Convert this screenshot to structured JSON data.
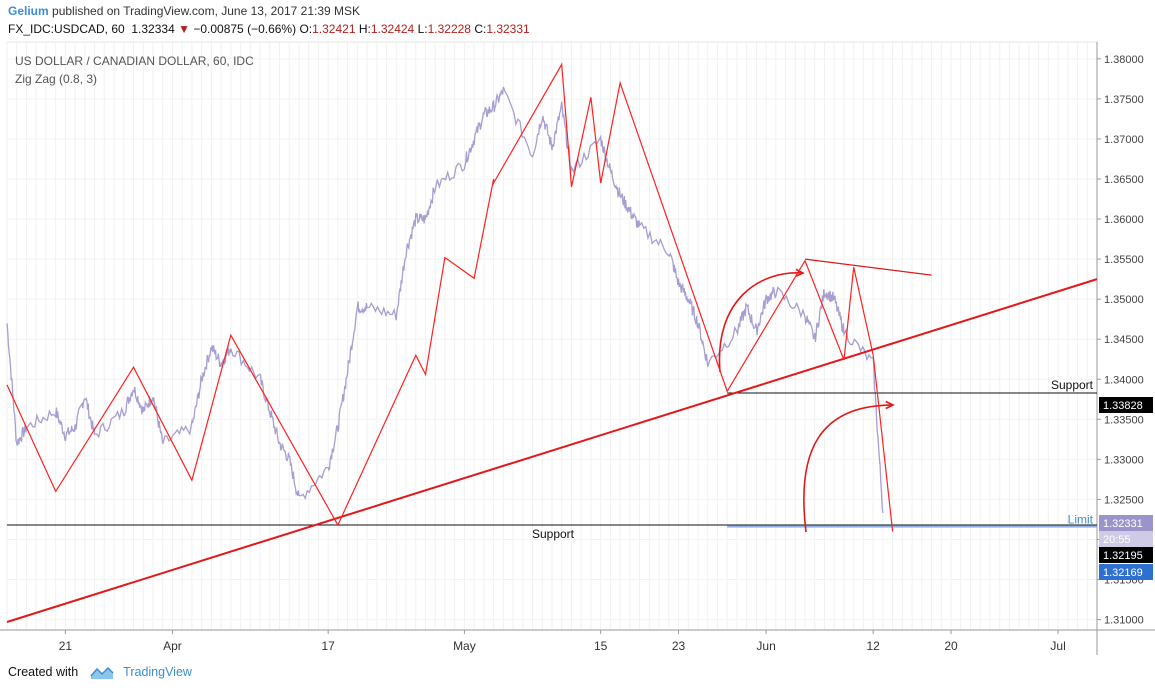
{
  "header": {
    "author": "Gelium",
    "published_text": "published on TradingView.com, June 13, 2017 21:39 MSK",
    "symbol": "FX_IDC:USDCAD, 60",
    "last": "1.32334",
    "change_arrow": "▼",
    "change": "−0.00875 (−0.66%)",
    "o_label": "O:",
    "o_value": "1.32421",
    "h_label": "H:",
    "h_value": "1.32424",
    "l_label": "L:",
    "l_value": "1.32228",
    "c_label": "C:",
    "c_value": "1.32331"
  },
  "footer": {
    "created_with": "Created with",
    "brand": "TradingView",
    "logo_icon": "tradingview-logo-icon"
  },
  "colors": {
    "price": "#9d94cc",
    "zigzag": "#ff2020",
    "trend": "#e0191a",
    "support": "#111111",
    "limit": "#8fb3e6",
    "accent": "#3d8fd1"
  },
  "chart_data": {
    "type": "line",
    "title": "US DOLLAR / CANADIAN DOLLAR, 60, IDC",
    "indicator": "Zig Zag (0.8, 3)",
    "y_ticks": [
      "1.38000",
      "1.37500",
      "1.37000",
      "1.36500",
      "1.36000",
      "1.35500",
      "1.35000",
      "1.34500",
      "1.34000",
      "1.33500",
      "1.33000",
      "1.32500",
      "1.32000",
      "1.31500",
      "1.31000"
    ],
    "ylim": [
      1.3087,
      1.3821
    ],
    "x_ticks": [
      "21",
      "Apr",
      "17",
      "May",
      "15",
      "23",
      "Jun",
      "12",
      "20",
      "Jul"
    ],
    "price_series": [
      {
        "x": "Mar 15",
        "y": 1.347
      },
      {
        "x": "Mar 16",
        "y": 1.332
      },
      {
        "x": "Mar 17",
        "y": 1.334
      },
      {
        "x": "Mar 20",
        "y": 1.336
      },
      {
        "x": "Mar 21",
        "y": 1.333
      },
      {
        "x": "Mar 22",
        "y": 1.334
      },
      {
        "x": "Mar 23",
        "y": 1.338
      },
      {
        "x": "Mar 24",
        "y": 1.333
      },
      {
        "x": "Mar 27",
        "y": 1.336
      },
      {
        "x": "Mar 28",
        "y": 1.339
      },
      {
        "x": "Mar 29",
        "y": 1.336
      },
      {
        "x": "Mar 30",
        "y": 1.338
      },
      {
        "x": "Mar 31",
        "y": 1.332
      },
      {
        "x": "Apr 3",
        "y": 1.334
      },
      {
        "x": "Apr 4",
        "y": 1.34
      },
      {
        "x": "Apr 5",
        "y": 1.344
      },
      {
        "x": "Apr 6",
        "y": 1.342
      },
      {
        "x": "Apr 7",
        "y": 1.344
      },
      {
        "x": "Apr 10",
        "y": 1.34
      },
      {
        "x": "Apr 11",
        "y": 1.336
      },
      {
        "x": "Apr 12",
        "y": 1.332
      },
      {
        "x": "Apr 13",
        "y": 1.33
      },
      {
        "x": "Apr 14",
        "y": 1.325
      },
      {
        "x": "Apr 17",
        "y": 1.329
      },
      {
        "x": "Apr 18",
        "y": 1.334
      },
      {
        "x": "Apr 19",
        "y": 1.341
      },
      {
        "x": "Apr 20",
        "y": 1.349
      },
      {
        "x": "Apr 21",
        "y": 1.349
      },
      {
        "x": "Apr 24",
        "y": 1.348
      },
      {
        "x": "Apr 25",
        "y": 1.356
      },
      {
        "x": "Apr 26",
        "y": 1.36
      },
      {
        "x": "Apr 27",
        "y": 1.36
      },
      {
        "x": "Apr 28",
        "y": 1.364
      },
      {
        "x": "May 1",
        "y": 1.367
      },
      {
        "x": "May 2",
        "y": 1.37
      },
      {
        "x": "May 3",
        "y": 1.373
      },
      {
        "x": "May 4",
        "y": 1.374
      },
      {
        "x": "May 5",
        "y": 1.376
      },
      {
        "x": "May 8",
        "y": 1.368
      },
      {
        "x": "May 9",
        "y": 1.373
      },
      {
        "x": "May 10",
        "y": 1.369
      },
      {
        "x": "May 11",
        "y": 1.374
      },
      {
        "x": "May 12",
        "y": 1.366
      },
      {
        "x": "May 15",
        "y": 1.37
      },
      {
        "x": "May 16",
        "y": 1.366
      },
      {
        "x": "May 17",
        "y": 1.363
      },
      {
        "x": "May 18",
        "y": 1.361
      },
      {
        "x": "May 19",
        "y": 1.359
      },
      {
        "x": "May 22",
        "y": 1.356
      },
      {
        "x": "May 23",
        "y": 1.352
      },
      {
        "x": "May 24",
        "y": 1.35
      },
      {
        "x": "May 25",
        "y": 1.347
      },
      {
        "x": "May 26",
        "y": 1.342
      },
      {
        "x": "May 29",
        "y": 1.346
      },
      {
        "x": "May 30",
        "y": 1.349
      },
      {
        "x": "May 31",
        "y": 1.346
      },
      {
        "x": "Jun 1",
        "y": 1.35
      },
      {
        "x": "Jun 2",
        "y": 1.351
      },
      {
        "x": "Jun 5",
        "y": 1.348
      },
      {
        "x": "Jun 6",
        "y": 1.345
      },
      {
        "x": "Jun 7",
        "y": 1.351
      },
      {
        "x": "Jun 8",
        "y": 1.35
      },
      {
        "x": "Jun 9",
        "y": 1.346
      },
      {
        "x": "Jun 12",
        "y": 1.342
      },
      {
        "x": "Jun 13",
        "y": 1.3233
      }
    ],
    "zigzag": [
      {
        "x": "Mar 15",
        "y": 1.3393
      },
      {
        "x": "Mar 20",
        "y": 1.326
      },
      {
        "x": "Mar 28",
        "y": 1.3415
      },
      {
        "x": "Apr 3",
        "y": 1.3274
      },
      {
        "x": "Apr 7",
        "y": 1.3455
      },
      {
        "x": "Apr 18",
        "y": 1.3218
      },
      {
        "x": "Apr 26",
        "y": 1.343
      },
      {
        "x": "Apr 27",
        "y": 1.3406
      },
      {
        "x": "Apr 29",
        "y": 1.3552
      },
      {
        "x": "May 2",
        "y": 1.3526
      },
      {
        "x": "May 4",
        "y": 1.365
      },
      {
        "x": "May 4",
        "y": 1.3645
      },
      {
        "x": "May 11",
        "y": 1.3793
      },
      {
        "x": "May 12",
        "y": 1.364
      },
      {
        "x": "May 14",
        "y": 1.3752
      },
      {
        "x": "May 15",
        "y": 1.3645
      },
      {
        "x": "May 17",
        "y": 1.377
      },
      {
        "x": "May 28",
        "y": 1.3385
      },
      {
        "x": "Jun 5",
        "y": 1.3548
      },
      {
        "x": "Jun 9",
        "y": 1.3424
      },
      {
        "x": "Jun 10",
        "y": 1.354
      },
      {
        "x": "Jun 12",
        "y": 1.343
      },
      {
        "x": "Jun 14",
        "y": 1.321
      }
    ],
    "drawings": {
      "trendline": {
        "from": {
          "x": "Mar 15",
          "y": 1.3097
        },
        "to": {
          "x": "Jul 5",
          "y": 1.3525
        }
      },
      "resistance": {
        "from": {
          "x": "Jun 5",
          "y": 1.355
        },
        "to": {
          "x": "Jun 18",
          "y": 1.353
        }
      },
      "support_upper": {
        "from": {
          "x": "May 28",
          "y": 1.33828
        },
        "to": {
          "x": "Jul 5",
          "y": 1.33828
        },
        "label": "Support"
      },
      "support_lower": {
        "from": {
          "x": "Mar 15",
          "y": 1.3218
        },
        "to": {
          "x": "Jul 5",
          "y": 1.3218
        },
        "label": "Support"
      },
      "limit": {
        "from": {
          "x": "May 28",
          "y": 1.3216
        },
        "to": {
          "x": "Jul 5",
          "y": 1.3216
        },
        "label": "Limit"
      }
    },
    "price_labels": [
      {
        "value": "1.33828",
        "bg": "#000000",
        "fg": "#ffffff"
      },
      {
        "value": "1.32331",
        "bg": "#9b94cb",
        "fg": "#ffffff"
      },
      {
        "value": "20:55",
        "bg": "#cfcae6",
        "fg": "#ffffff"
      },
      {
        "value": "1.32195",
        "bg": "#000000",
        "fg": "#ffffff"
      },
      {
        "value": "1.32169",
        "bg": "#2f6fd0",
        "fg": "#ffffff"
      }
    ]
  }
}
